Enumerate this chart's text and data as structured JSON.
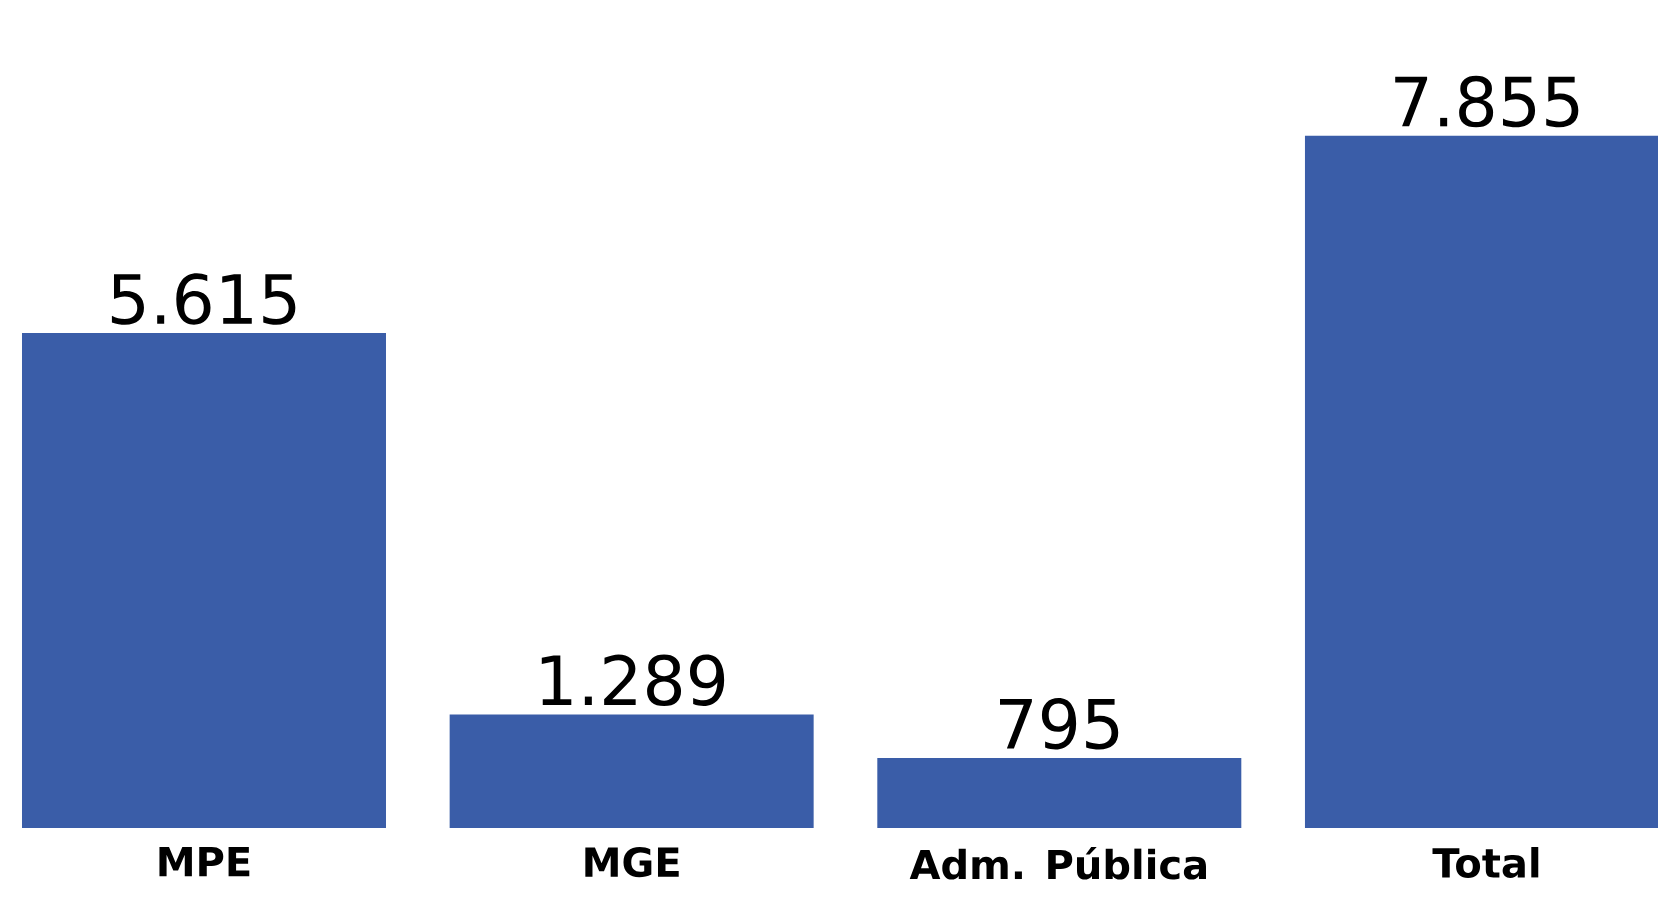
{
  "chart_data": {
    "type": "bar",
    "categories": [
      "MPE",
      "MGE",
      "Adm. Pública",
      "Total"
    ],
    "values": [
      5615,
      1289,
      795,
      7855
    ],
    "value_labels": [
      "5.615",
      "1.289",
      "795",
      "7.855"
    ],
    "color": "#3a5da8"
  }
}
